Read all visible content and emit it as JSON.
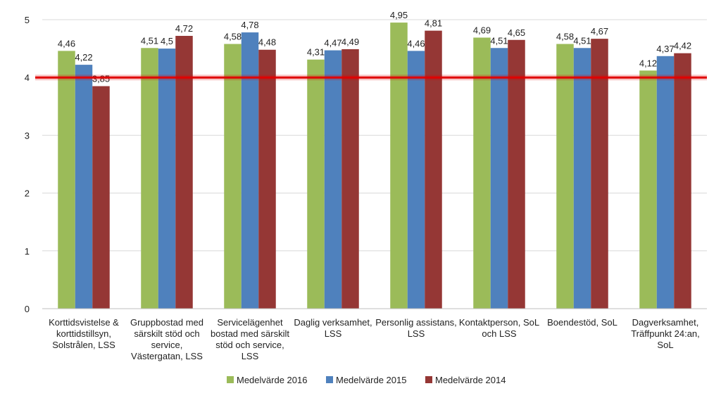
{
  "chart_data": {
    "type": "bar",
    "title": "",
    "xlabel": "",
    "ylabel": "",
    "ylim": [
      0,
      5
    ],
    "yticks": [
      "0",
      "1",
      "2",
      "3",
      "4",
      "5"
    ],
    "grid": true,
    "categories": [
      [
        "Korttidsvistelse &",
        "korttidstillsyn,",
        "Solstrålen, LSS"
      ],
      [
        "Gruppbostad med",
        "särskilt stöd och",
        "service,",
        "Västergatan, LSS"
      ],
      [
        "Servicelägenhet",
        "bostad med särskilt",
        "stöd och service,",
        "LSS"
      ],
      [
        "Daglig verksamhet,",
        "LSS"
      ],
      [
        "Personlig assistans,",
        "LSS"
      ],
      [
        "Kontaktperson, SoL",
        "och LSS"
      ],
      [
        "Boendestöd, SoL"
      ],
      [
        "Dagverksamhet,",
        "Träffpunkt 24:an,",
        "SoL"
      ]
    ],
    "series": [
      {
        "name": "Medelvärde 2016",
        "color": "#9bbb59",
        "values": [
          4.46,
          4.51,
          4.58,
          4.31,
          4.95,
          4.69,
          4.58,
          4.12
        ],
        "labels": [
          "4,46",
          "4,51",
          "4,58",
          "4,31",
          "4,95",
          "4,69",
          "4,58",
          "4,12"
        ]
      },
      {
        "name": "Medelvärde 2015",
        "color": "#4f81bd",
        "values": [
          4.22,
          4.5,
          4.78,
          4.47,
          4.46,
          4.51,
          4.51,
          4.37
        ],
        "labels": [
          "4,22",
          "4,5",
          "4,78",
          "4,47",
          "4,46",
          "4,51",
          "4,51",
          "4,37"
        ]
      },
      {
        "name": "Medelvärde 2014",
        "color": "#953735",
        "values": [
          3.85,
          4.72,
          4.48,
          4.49,
          4.81,
          4.65,
          4.67,
          4.42
        ],
        "labels": [
          "3,85",
          "4,72",
          "4,48",
          "4,49",
          "4,81",
          "4,65",
          "4,67",
          "4,42"
        ]
      }
    ],
    "reference_line": {
      "value": 4,
      "color": "#e00000"
    },
    "legend_position": "bottom"
  }
}
